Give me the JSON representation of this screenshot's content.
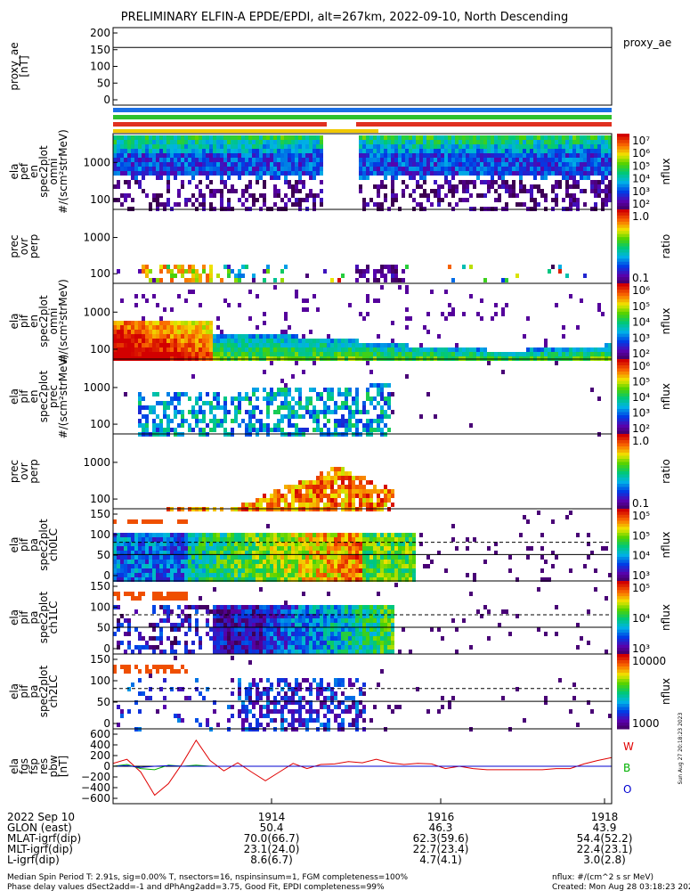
{
  "title": "PRELIMINARY ELFIN-A EPDE/EPDI, alt=267km, 2022-09-10, North Descending",
  "colors": {
    "bar_blue": "#1a6fe6",
    "bar_green": "#2ec02e",
    "bar_red": "#e03020",
    "bar_yellow": "#f0c800",
    "line_red": "#e00000",
    "line_green": "#00b000",
    "line_blue": "#0000d0"
  },
  "chart_data": [
    {
      "type": "line",
      "id": "proxy_ae",
      "ylabel": "proxy_ae [nT]",
      "legend": "proxy_ae",
      "yticks": [
        "200",
        "150",
        "100",
        "50",
        "0"
      ],
      "ylim": [
        0,
        200
      ],
      "hline": 160
    },
    {
      "type": "heatmap",
      "id": "pef_omni",
      "ylabel": "ela pef en spec2plot omni #/(scm²strMeV)",
      "yticks": [
        "1000",
        "100"
      ],
      "cbar_label": "nflux",
      "cbar_ticks": [
        "10⁷",
        "10⁶",
        "10⁵",
        "10⁴",
        "10³",
        "10²"
      ]
    },
    {
      "type": "heatmap",
      "id": "pef_ratio",
      "ylabel": "prec ovr perp",
      "yticks": [
        "1000",
        "100"
      ],
      "cbar_label": "ratio",
      "cbar_ticks": [
        "1.0",
        "0.1"
      ]
    },
    {
      "type": "heatmap",
      "id": "pif_omni",
      "ylabel": "ela pif en spec2plot omni #/(scm²strMeV)",
      "yticks": [
        "1000",
        "100"
      ],
      "cbar_label": "nflux",
      "cbar_ticks": [
        "10⁶",
        "10⁵",
        "10⁴",
        "10³",
        "10²"
      ]
    },
    {
      "type": "heatmap",
      "id": "pif_prec",
      "ylabel": "ela pif en spec2plot prec #/(scm²strMeV)",
      "yticks": [
        "1000",
        "100"
      ],
      "cbar_label": "nflux",
      "cbar_ticks": [
        "10⁶",
        "10⁵",
        "10⁴",
        "10³",
        "10²"
      ]
    },
    {
      "type": "heatmap",
      "id": "pif_ratio",
      "ylabel": "prec ovr perp",
      "yticks": [
        "1000",
        "100"
      ],
      "cbar_label": "ratio",
      "cbar_ticks": [
        "1.0",
        "0.1"
      ]
    },
    {
      "type": "heatmap",
      "id": "pa_ch0",
      "ylabel": "ela pif pa spec2plot ch0LC",
      "yticks": [
        "150",
        "100",
        "50",
        "0"
      ],
      "cbar_label": "nflux",
      "cbar_ticks": [
        "10⁵",
        "10⁵",
        "10⁴",
        "10³"
      ]
    },
    {
      "type": "heatmap",
      "id": "pa_ch1",
      "ylabel": "ela pif pa spec2plot ch1LC",
      "yticks": [
        "150",
        "100",
        "50",
        "0"
      ],
      "cbar_label": "nflux",
      "cbar_ticks": [
        "10⁵",
        "10⁴",
        "10³"
      ]
    },
    {
      "type": "heatmap",
      "id": "pa_ch2",
      "ylabel": "ela pif pa spec2plot ch2LC",
      "yticks": [
        "150",
        "100",
        "50",
        "0"
      ],
      "cbar_label": "nflux",
      "cbar_ticks": [
        "10000",
        "1000"
      ]
    },
    {
      "type": "line",
      "id": "fgs_res",
      "ylabel": "ela fgs fsp res pbw [nT]",
      "yticks": [
        "600",
        "400",
        "200",
        "0",
        "−200",
        "−400",
        "−600"
      ],
      "ylim": [
        -600,
        600
      ],
      "legend_labels": [
        "W",
        "B",
        "O"
      ],
      "series": [
        {
          "name": "W",
          "color": "line_red",
          "values": [
            50,
            120,
            -100,
            -500,
            -300,
            50,
            450,
            100,
            -80,
            60,
            -100,
            -250,
            -100,
            50,
            -40,
            30,
            40,
            80,
            60,
            120,
            60,
            30,
            50,
            40,
            -40,
            0,
            -40,
            -60,
            -60,
            -60,
            -60,
            -60,
            -40,
            -40,
            40,
            100,
            150
          ]
        },
        {
          "name": "B",
          "color": "line_green",
          "values": [
            0,
            30,
            -40,
            -60,
            20,
            0,
            20,
            0,
            0,
            0,
            0,
            0,
            0,
            0,
            0,
            0,
            0,
            0,
            0,
            0,
            0,
            0,
            0,
            0,
            0,
            0,
            0,
            0,
            0,
            0,
            0,
            0,
            0,
            0,
            0,
            0,
            0
          ]
        },
        {
          "name": "O",
          "color": "line_blue",
          "values": [
            0,
            10,
            -20,
            0,
            10,
            0,
            0,
            0,
            0,
            0,
            0,
            0,
            0,
            0,
            0,
            0,
            0,
            0,
            0,
            0,
            0,
            0,
            0,
            0,
            0,
            0,
            0,
            0,
            0,
            0,
            0,
            0,
            0,
            0,
            0,
            0,
            0
          ]
        }
      ]
    }
  ],
  "side_note": "Sun Aug 27 20:18:23 2023",
  "x_axis": {
    "ticks": [
      "1914",
      "1916",
      "1918"
    ],
    "rows": [
      {
        "label": "2022 Sep 10",
        "values": [
          "1914",
          "1916",
          "1918"
        ]
      },
      {
        "label": "GLON (east)",
        "values": [
          "50.4",
          "46.3",
          "43.9"
        ]
      },
      {
        "label": "MLAT-igrf(dip)",
        "values": [
          "70.0(66.7)",
          "62.3(59.6)",
          "54.4(52.2)"
        ]
      },
      {
        "label": "MLT-igrf(dip)",
        "values": [
          "23.1(24.0)",
          "22.7(23.4)",
          "22.4(23.1)"
        ]
      },
      {
        "label": "L-igrf(dip)",
        "values": [
          "8.6(6.7)",
          "4.7(4.1)",
          "3.0(2.8)"
        ]
      }
    ]
  },
  "footer": {
    "line1_left": "Median Spin Period T: 2.91s, sig=0.00% T, nsectors=16, nspinsinsum=1, FGM completeness=100%",
    "line2_left": "Phase delay values dSect2add=-1 and dPhAng2add=3.75, Good Fit, EPDI completeness=99%",
    "line1_right": "nflux: #/(cm^2 s sr MeV)",
    "line2_right": "Created: Mon Aug 28 03:18:23 2023"
  }
}
